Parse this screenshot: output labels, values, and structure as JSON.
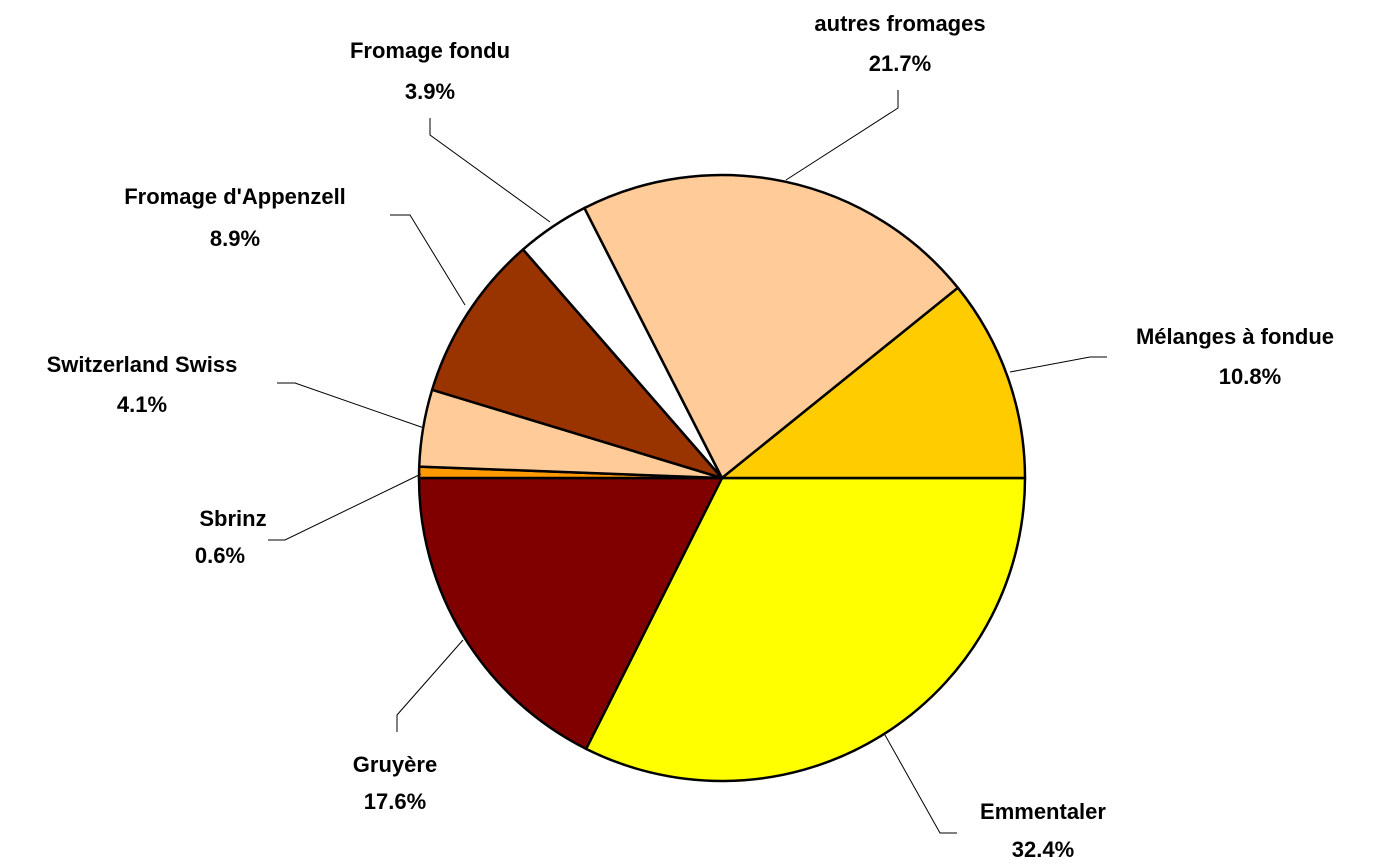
{
  "chart_data": {
    "type": "pie",
    "categories": [
      "Emmentaler",
      "Gruyère",
      "Sbrinz",
      "Switzerland Swiss",
      "Fromage d'Appenzell",
      "Fromage fondu",
      "autres fromages",
      "Mélanges à fondue"
    ],
    "values": [
      32.4,
      17.6,
      0.6,
      4.1,
      8.9,
      3.9,
      21.7,
      10.8
    ],
    "value_labels": [
      "32.4%",
      "17.6%",
      "0.6%",
      "4.1%",
      "8.9%",
      "3.9%",
      "21.7%",
      "10.8%"
    ],
    "colors": [
      "#ffff00",
      "#800000",
      "#ff9900",
      "#ffcc99",
      "#993300",
      "#ffffff",
      "#ffcc99",
      "#ffcc00"
    ]
  }
}
